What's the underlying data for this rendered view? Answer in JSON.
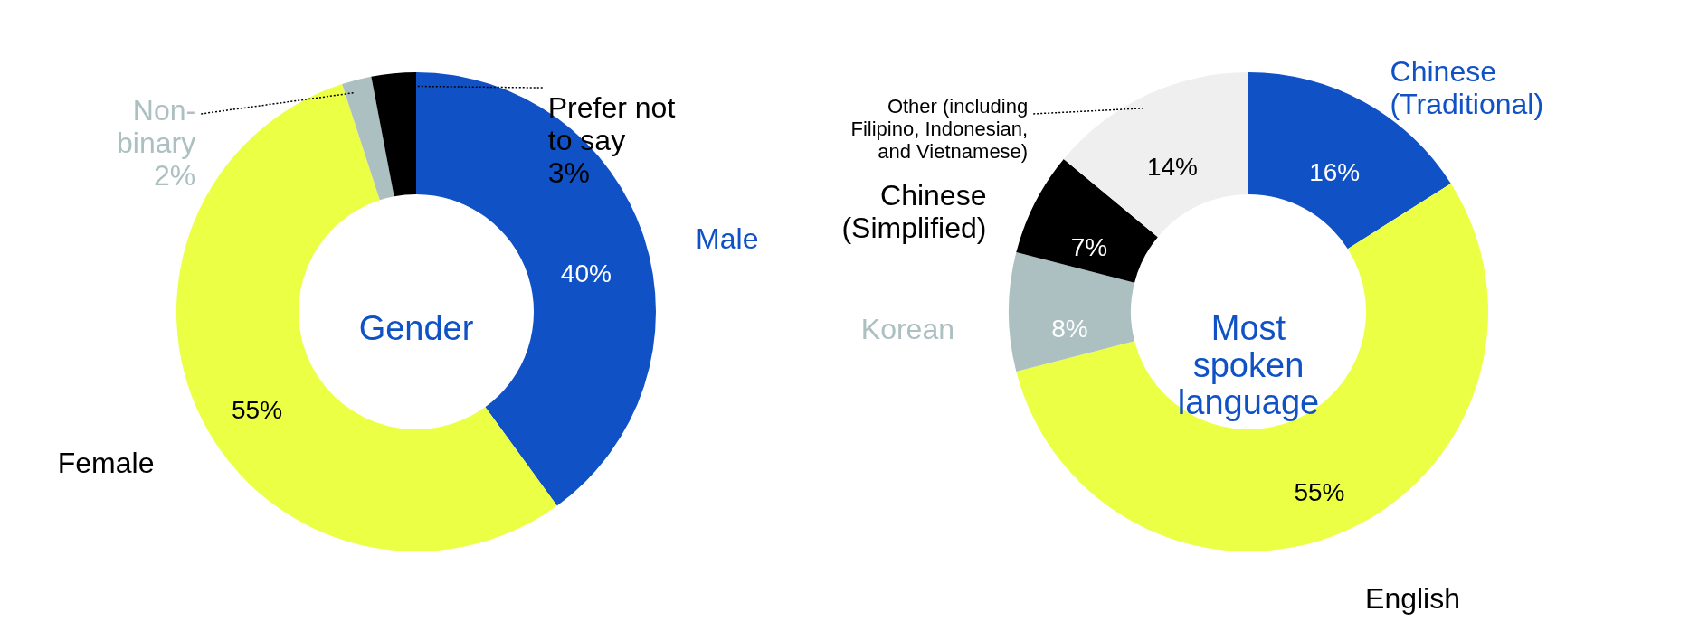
{
  "chart_data": [
    {
      "type": "donut",
      "title": "Gender",
      "categories": [
        "Male",
        "Female",
        "Non-\nbinary",
        "Prefer not\nto say"
      ],
      "values": [
        40,
        55,
        2,
        3
      ],
      "colors": [
        "#1052c6",
        "#ebff45",
        "#acbfc1",
        "#000000"
      ],
      "value_labels": [
        "40%",
        "55%",
        null,
        null
      ],
      "annotations": [
        {
          "text": "2%",
          "x": "Non-\nbinary"
        },
        {
          "text": "3%",
          "x": "Prefer not\nto say"
        }
      ]
    },
    {
      "type": "donut",
      "title": "Most\nspoken\nlanguage",
      "categories": [
        "Chinese\n(Traditional)",
        "English",
        "Korean",
        "Chinese\n(Simplified)",
        "Other (including\nFilipino, Indonesian,\nand Vietnamese)"
      ],
      "values": [
        16,
        55,
        8,
        7,
        14
      ],
      "colors": [
        "#1052c6",
        "#ebff45",
        "#acbfc1",
        "#000000",
        "#efefef"
      ],
      "value_labels": [
        "16%",
        "55%",
        "8%",
        "7%",
        "14%"
      ]
    }
  ]
}
